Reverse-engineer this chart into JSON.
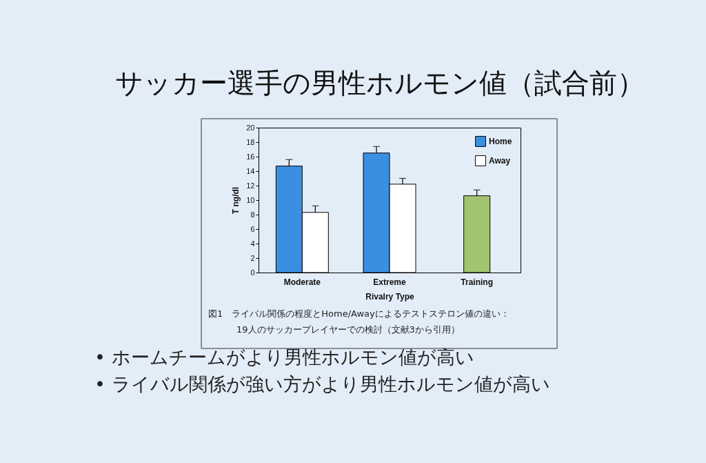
{
  "chart_data": {
    "type": "bar",
    "title": "サッカー選手の男性ホルモン値（試合前）",
    "xlabel": "Rivalry Type",
    "ylabel": "T ng/dl",
    "categories": [
      "Moderate",
      "Extreme",
      "Training"
    ],
    "series": [
      {
        "name": "Home",
        "color": "#3b8fe0",
        "values": [
          14.7,
          16.5,
          null
        ],
        "errors": [
          [
            14.7,
            15.6
          ],
          [
            16.5,
            17.4
          ],
          null
        ]
      },
      {
        "name": "Away",
        "color": "#ffffff",
        "values": [
          8.3,
          12.2,
          null
        ],
        "errors": [
          [
            8.3,
            9.2
          ],
          [
            12.2,
            13.0
          ],
          null
        ]
      },
      {
        "color": "#a3c46f",
        "values": [
          null,
          null,
          10.6
        ],
        "errors": [
          null,
          null,
          [
            10.6,
            11.4
          ]
        ]
      }
    ],
    "ylim": [
      0,
      20
    ],
    "yticks": [
      0,
      2,
      4,
      6,
      8,
      10,
      12,
      14,
      16,
      18,
      20
    ],
    "legend": "top right",
    "annotations": [
      "図1　ライバル関係の程度とHome/Awayによるテストステロン値の違い：",
      "19人のサッカープレイヤーでの検討（文献3から引用）",
      "• ホームチームがより男性ホルモン値が高い",
      "• ライバル関係が強い方がより男性ホルモン値が高い"
    ]
  }
}
